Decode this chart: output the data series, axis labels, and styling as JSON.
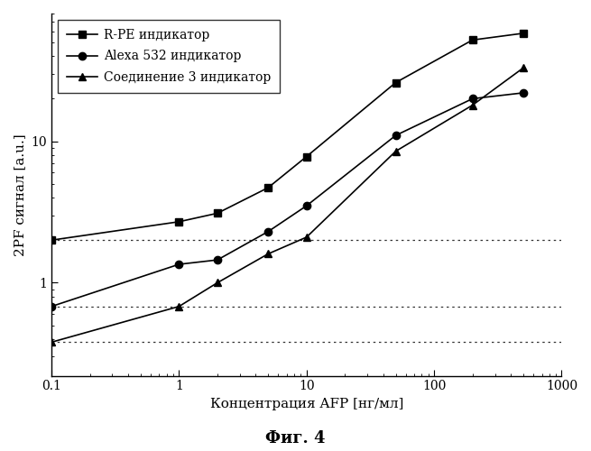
{
  "title": "",
  "xlabel": "Концентрация AFP [нг/мл]",
  "ylabel": "2PF сигнал [a.u.]",
  "caption": "Фиг. 4",
  "xlim": [
    0.1,
    1000
  ],
  "ylim": [
    0.22,
    80
  ],
  "yticks": [
    1,
    10
  ],
  "xticks": [
    0.1,
    1,
    10,
    100,
    1000
  ],
  "series": [
    {
      "label": "R-PE индикатор",
      "marker": "s",
      "x": [
        0.1,
        1.0,
        2.0,
        5.0,
        10.0,
        50.0,
        200.0,
        500.0
      ],
      "y": [
        2.0,
        2.7,
        3.1,
        4.7,
        7.8,
        26.0,
        52.0,
        58.0
      ],
      "hline": 2.0
    },
    {
      "label": "Alexa 532 индикатор",
      "marker": "o",
      "x": [
        0.1,
        1.0,
        2.0,
        5.0,
        10.0,
        50.0,
        200.0,
        500.0
      ],
      "y": [
        0.68,
        1.35,
        1.45,
        2.3,
        3.5,
        11.0,
        20.0,
        22.0
      ],
      "hline": 0.68
    },
    {
      "label": "Соединение 3 индикатор",
      "marker": "^",
      "x": [
        0.1,
        1.0,
        2.0,
        5.0,
        10.0,
        50.0,
        200.0,
        500.0
      ],
      "y": [
        0.38,
        0.68,
        1.0,
        1.6,
        2.1,
        8.5,
        18.0,
        33.0
      ],
      "hline": 0.38
    }
  ],
  "background_color": "#ffffff",
  "line_color": "#000000",
  "fontsize_labels": 11,
  "fontsize_caption": 13,
  "fontsize_legend": 10,
  "fontsize_ticks": 10,
  "markersize": 6,
  "linewidth": 1.2
}
